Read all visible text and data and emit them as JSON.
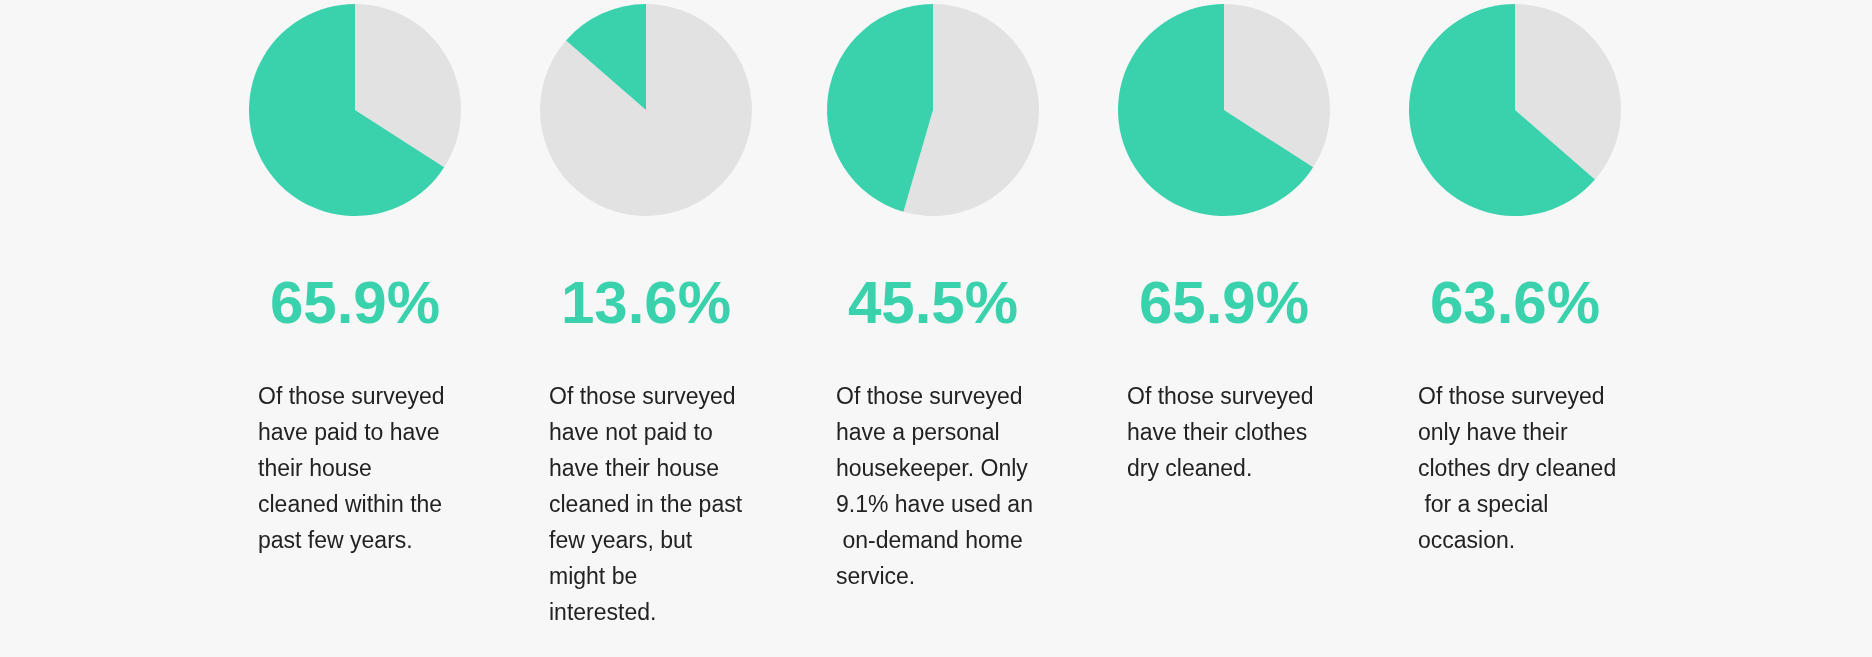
{
  "chart_data": [
    {
      "type": "pie",
      "title": "65.9%",
      "categories": [
        null,
        null
      ],
      "values": [
        34.1,
        65.9
      ],
      "colors": [
        "#e2e2e2",
        "#3ad1ad"
      ],
      "annotations": [
        "Of those surveyed have paid to have their house cleaned within the past few years."
      ]
    },
    {
      "type": "pie",
      "title": "13.6%",
      "categories": [
        null,
        null
      ],
      "values": [
        86.4,
        13.6
      ],
      "colors": [
        "#e2e2e2",
        "#3ad1ad"
      ],
      "annotations": [
        "Of those surveyed have not paid to have their house cleaned in the past few years, but might be interested."
      ]
    },
    {
      "type": "pie",
      "title": "45.5%",
      "categories": [
        null,
        null
      ],
      "values": [
        54.5,
        45.5
      ],
      "colors": [
        "#e2e2e2",
        "#3ad1ad"
      ],
      "annotations": [
        "Of those surveyed have a personal housekeeper. Only 9.1% have used an on-demand home service."
      ]
    },
    {
      "type": "pie",
      "title": "65.9%",
      "categories": [
        null,
        null
      ],
      "values": [
        34.1,
        65.9
      ],
      "colors": [
        "#e2e2e2",
        "#3ad1ad"
      ],
      "annotations": [
        "Of those surveyed have their clothes dry cleaned."
      ]
    },
    {
      "type": "pie",
      "title": "63.6%",
      "categories": [
        null,
        null
      ],
      "values": [
        36.4,
        63.6
      ],
      "colors": [
        "#e2e2e2",
        "#3ad1ad"
      ],
      "annotations": [
        "Of those surveyed only have their clothes dry cleaned for a special occasion."
      ]
    }
  ]
}
